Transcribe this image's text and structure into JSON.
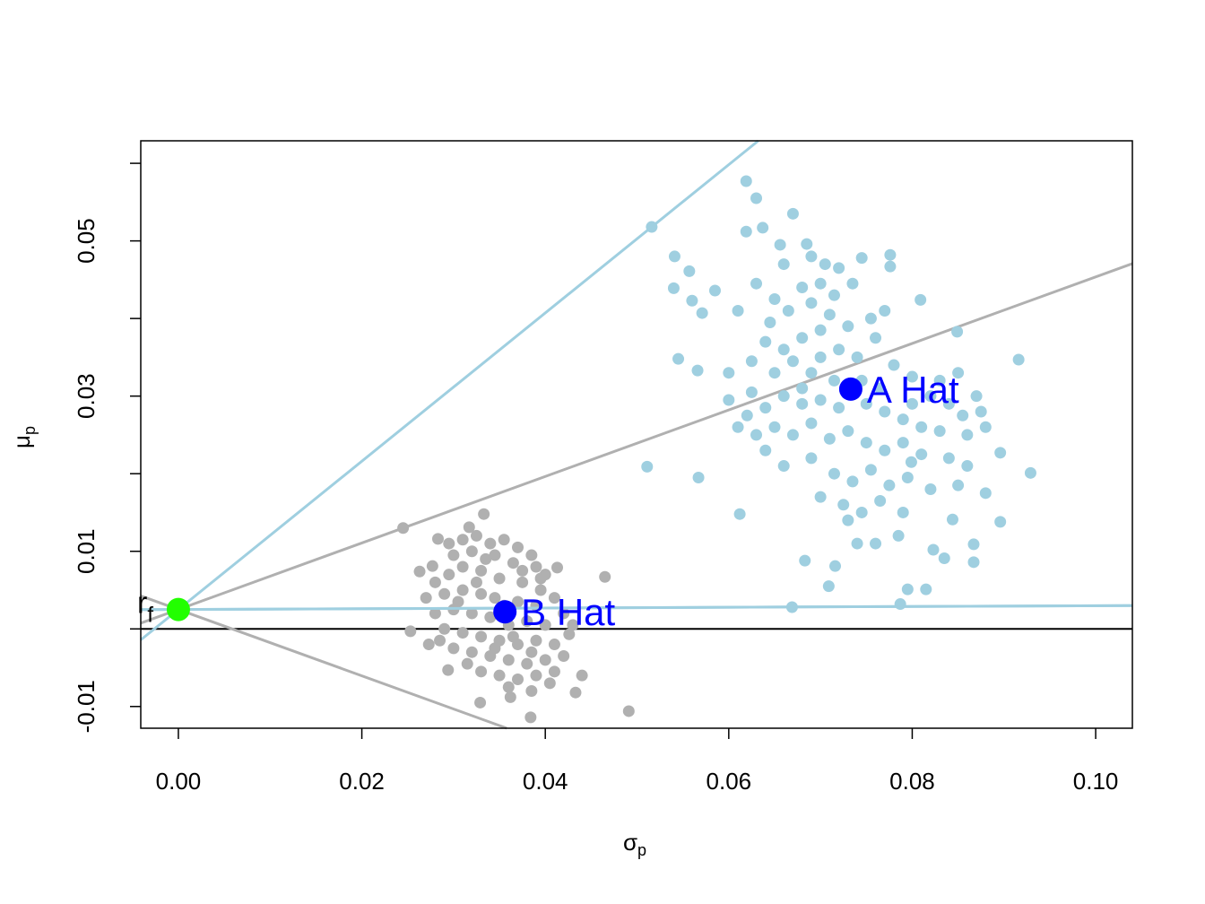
{
  "chart_data": {
    "type": "scatter",
    "title": "",
    "xlabel": "σ",
    "xlabel_sub": "p",
    "ylabel": "μ",
    "ylabel_sub": "p",
    "xlim": [
      -0.0041,
      0.104
    ],
    "ylim": [
      -0.0128,
      0.0629
    ],
    "x_ticks": [
      0,
      0.02,
      0.04,
      0.06,
      0.08,
      0.1
    ],
    "x_tick_labels": [
      "0.00",
      "0.02",
      "0.04",
      "0.06",
      "0.08",
      "0.10"
    ],
    "y_ticks": [
      -0.01,
      0,
      0.01,
      0.02,
      0.03,
      0.04,
      0.05,
      0.06
    ],
    "y_tick_labels": [
      "-0.01",
      "",
      "0.01",
      "",
      "0.03",
      "",
      "0.05",
      ""
    ],
    "grid": false,
    "hline": {
      "y": 0,
      "color": "#000000"
    },
    "colors": {
      "a_cloud": "#9FCFE0",
      "b_cloud": "#B0B0B0",
      "hat": "#0000FF",
      "rf": "#22FF00"
    },
    "series": [
      {
        "color": "#9FCFE0",
        "points": [
          [
            0.0619,
            0.0577
          ],
          [
            0.063,
            0.0555
          ],
          [
            0.0637,
            0.0517
          ],
          [
            0.0619,
            0.0512
          ],
          [
            0.067,
            0.0535
          ],
          [
            0.0541,
            0.048
          ],
          [
            0.0557,
            0.0461
          ],
          [
            0.054,
            0.0439
          ],
          [
            0.056,
            0.0423
          ],
          [
            0.0571,
            0.0407
          ],
          [
            0.0585,
            0.0436
          ],
          [
            0.0545,
            0.0348
          ],
          [
            0.0566,
            0.0333
          ],
          [
            0.0916,
            0.0347
          ],
          [
            0.0929,
            0.0201
          ],
          [
            0.0896,
            0.0227
          ],
          [
            0.0896,
            0.0138
          ],
          [
            0.0511,
            0.0209
          ],
          [
            0.0567,
            0.0195
          ],
          [
            0.0612,
            0.0148
          ],
          [
            0.0669,
            0.0028
          ],
          [
            0.0787,
            0.0032
          ],
          [
            0.0709,
            0.0055
          ],
          [
            0.0795,
            0.0051
          ],
          [
            0.0815,
            0.0051
          ],
          [
            0.0867,
            0.0086
          ],
          [
            0.0867,
            0.0109
          ],
          [
            0.0835,
            0.0091
          ],
          [
            0.0683,
            0.0088
          ],
          [
            0.0716,
            0.0081
          ],
          [
            0.0809,
            0.0424
          ],
          [
            0.0776,
            0.0482
          ],
          [
            0.0776,
            0.0467
          ],
          [
            0.0656,
            0.0495
          ],
          [
            0.0685,
            0.0496
          ],
          [
            0.0844,
            0.0141
          ],
          [
            0.0823,
            0.0102
          ],
          [
            0.0799,
            0.0215
          ],
          [
            0.0849,
            0.0383
          ],
          [
            0.066,
            0.047
          ],
          [
            0.069,
            0.048
          ],
          [
            0.0705,
            0.047
          ],
          [
            0.072,
            0.0465
          ],
          [
            0.0745,
            0.0478
          ],
          [
            0.068,
            0.044
          ],
          [
            0.07,
            0.0445
          ],
          [
            0.0715,
            0.043
          ],
          [
            0.0735,
            0.0445
          ],
          [
            0.065,
            0.0425
          ],
          [
            0.063,
            0.0445
          ],
          [
            0.061,
            0.041
          ],
          [
            0.0645,
            0.0395
          ],
          [
            0.0665,
            0.041
          ],
          [
            0.069,
            0.042
          ],
          [
            0.071,
            0.0405
          ],
          [
            0.073,
            0.039
          ],
          [
            0.0755,
            0.04
          ],
          [
            0.077,
            0.041
          ],
          [
            0.076,
            0.0375
          ],
          [
            0.064,
            0.037
          ],
          [
            0.066,
            0.036
          ],
          [
            0.068,
            0.0375
          ],
          [
            0.07,
            0.0385
          ],
          [
            0.072,
            0.036
          ],
          [
            0.074,
            0.035
          ],
          [
            0.06,
            0.033
          ],
          [
            0.0625,
            0.0345
          ],
          [
            0.065,
            0.033
          ],
          [
            0.067,
            0.0345
          ],
          [
            0.069,
            0.033
          ],
          [
            0.0715,
            0.032
          ],
          [
            0.078,
            0.034
          ],
          [
            0.08,
            0.0325
          ],
          [
            0.082,
            0.03
          ],
          [
            0.084,
            0.029
          ],
          [
            0.0855,
            0.0275
          ],
          [
            0.087,
            0.03
          ],
          [
            0.06,
            0.0295
          ],
          [
            0.0625,
            0.0305
          ],
          [
            0.064,
            0.0285
          ],
          [
            0.066,
            0.03
          ],
          [
            0.068,
            0.031
          ],
          [
            0.07,
            0.0295
          ],
          [
            0.072,
            0.0285
          ],
          [
            0.075,
            0.029
          ],
          [
            0.077,
            0.028
          ],
          [
            0.079,
            0.027
          ],
          [
            0.081,
            0.026
          ],
          [
            0.083,
            0.0255
          ],
          [
            0.086,
            0.025
          ],
          [
            0.088,
            0.026
          ],
          [
            0.065,
            0.026
          ],
          [
            0.067,
            0.025
          ],
          [
            0.069,
            0.0265
          ],
          [
            0.071,
            0.0245
          ],
          [
            0.073,
            0.0255
          ],
          [
            0.075,
            0.024
          ],
          [
            0.077,
            0.023
          ],
          [
            0.079,
            0.024
          ],
          [
            0.081,
            0.0225
          ],
          [
            0.084,
            0.022
          ],
          [
            0.086,
            0.021
          ],
          [
            0.064,
            0.023
          ],
          [
            0.066,
            0.021
          ],
          [
            0.069,
            0.022
          ],
          [
            0.0715,
            0.02
          ],
          [
            0.0735,
            0.019
          ],
          [
            0.0755,
            0.0205
          ],
          [
            0.0775,
            0.0185
          ],
          [
            0.0795,
            0.0195
          ],
          [
            0.082,
            0.018
          ],
          [
            0.085,
            0.0185
          ],
          [
            0.088,
            0.0175
          ],
          [
            0.07,
            0.017
          ],
          [
            0.0725,
            0.016
          ],
          [
            0.0745,
            0.015
          ],
          [
            0.0765,
            0.0165
          ],
          [
            0.079,
            0.015
          ],
          [
            0.073,
            0.014
          ],
          [
            0.076,
            0.011
          ],
          [
            0.0785,
            0.012
          ],
          [
            0.074,
            0.011
          ],
          [
            0.063,
            0.025
          ],
          [
            0.062,
            0.0275
          ],
          [
            0.08,
            0.029
          ],
          [
            0.083,
            0.032
          ],
          [
            0.0765,
            0.031
          ],
          [
            0.0745,
            0.032
          ],
          [
            0.085,
            0.033
          ],
          [
            0.0875,
            0.028
          ],
          [
            0.07,
            0.035
          ],
          [
            0.068,
            0.029
          ],
          [
            0.061,
            0.026
          ]
        ]
      },
      {
        "color": "#B0B0B0",
        "points": [
          [
            0.0333,
            0.0148
          ],
          [
            0.0491,
            -0.0106
          ],
          [
            0.0384,
            -0.0114
          ],
          [
            0.0465,
            0.0067
          ],
          [
            0.0253,
            -0.0003
          ],
          [
            0.0273,
            -0.002
          ],
          [
            0.0294,
            -0.0053
          ],
          [
            0.0329,
            -0.0095
          ],
          [
            0.0362,
            -0.0088
          ],
          [
            0.0433,
            -0.0082
          ],
          [
            0.044,
            -0.006
          ],
          [
            0.0413,
            0.0079
          ],
          [
            0.0277,
            0.0081
          ],
          [
            0.0263,
            0.0074
          ],
          [
            0.0283,
            0.0116
          ],
          [
            0.0317,
            0.0131
          ],
          [
            0.0426,
            -0.0007
          ],
          [
            0.0295,
            0.011
          ],
          [
            0.031,
            0.0115
          ],
          [
            0.0325,
            0.012
          ],
          [
            0.034,
            0.011
          ],
          [
            0.0355,
            0.0115
          ],
          [
            0.037,
            0.0105
          ],
          [
            0.0385,
            0.0095
          ],
          [
            0.03,
            0.0095
          ],
          [
            0.032,
            0.01
          ],
          [
            0.0345,
            0.0095
          ],
          [
            0.0365,
            0.0085
          ],
          [
            0.039,
            0.008
          ],
          [
            0.04,
            0.007
          ],
          [
            0.028,
            0.006
          ],
          [
            0.0295,
            0.007
          ],
          [
            0.031,
            0.008
          ],
          [
            0.033,
            0.0075
          ],
          [
            0.035,
            0.0065
          ],
          [
            0.0375,
            0.006
          ],
          [
            0.0395,
            0.005
          ],
          [
            0.027,
            0.004
          ],
          [
            0.029,
            0.0045
          ],
          [
            0.031,
            0.005
          ],
          [
            0.033,
            0.0045
          ],
          [
            0.0345,
            0.004
          ],
          [
            0.037,
            0.0035
          ],
          [
            0.039,
            0.003
          ],
          [
            0.041,
            0.004
          ],
          [
            0.042,
            0.002
          ],
          [
            0.028,
            0.002
          ],
          [
            0.03,
            0.0025
          ],
          [
            0.032,
            0.002
          ],
          [
            0.034,
            0.0015
          ],
          [
            0.036,
            0.0005
          ],
          [
            0.038,
            0.001
          ],
          [
            0.04,
            0.0005
          ],
          [
            0.029,
            0.0
          ],
          [
            0.031,
            -0.0005
          ],
          [
            0.033,
            -0.001
          ],
          [
            0.035,
            -0.0015
          ],
          [
            0.037,
            -0.002
          ],
          [
            0.039,
            -0.0015
          ],
          [
            0.041,
            -0.002
          ],
          [
            0.03,
            -0.0025
          ],
          [
            0.032,
            -0.003
          ],
          [
            0.034,
            -0.0035
          ],
          [
            0.036,
            -0.004
          ],
          [
            0.038,
            -0.0045
          ],
          [
            0.04,
            -0.004
          ],
          [
            0.042,
            -0.0035
          ],
          [
            0.033,
            -0.0055
          ],
          [
            0.035,
            -0.006
          ],
          [
            0.037,
            -0.0065
          ],
          [
            0.039,
            -0.006
          ],
          [
            0.041,
            -0.0055
          ],
          [
            0.036,
            -0.0075
          ],
          [
            0.0385,
            -0.008
          ],
          [
            0.0405,
            -0.007
          ],
          [
            0.0315,
            -0.0045
          ],
          [
            0.0285,
            -0.0015
          ],
          [
            0.0305,
            0.0035
          ],
          [
            0.0325,
            0.006
          ],
          [
            0.0355,
            0.003
          ],
          [
            0.0335,
            0.009
          ],
          [
            0.0375,
            0.0075
          ],
          [
            0.0395,
            0.0065
          ],
          [
            0.0345,
            -0.0025
          ],
          [
            0.0365,
            -0.001
          ],
          [
            0.0385,
            -0.003
          ],
          [
            0.043,
            0.0005
          ]
        ]
      }
    ],
    "lines": [
      {
        "color": "#9FCFE0",
        "from": [
          0.0,
          0.0025
        ],
        "through": [
          0.0516,
          0.0518
        ],
        "marker": true
      },
      {
        "color": "#B0B0B0",
        "from": [
          0.0,
          0.0025
        ],
        "through": [
          0.0245,
          0.013
        ],
        "marker": true
      },
      {
        "color": "#9FCFE0",
        "from": [
          0.0,
          0.0025
        ],
        "through": [
          0.104,
          0.003
        ],
        "marker": false
      },
      {
        "color": "#B0B0B0",
        "from": [
          0.0,
          0.0025
        ],
        "through": [
          0.0358,
          -0.0128
        ],
        "marker": false
      }
    ],
    "annotations": [
      {
        "label": "A Hat",
        "x": 0.0733,
        "y": 0.0309
      },
      {
        "label": "B Hat",
        "x": 0.0356,
        "y": 0.0022
      }
    ],
    "rf": {
      "label": "r",
      "label_sub": "f",
      "x": 0.0,
      "y": 0.0025
    }
  }
}
